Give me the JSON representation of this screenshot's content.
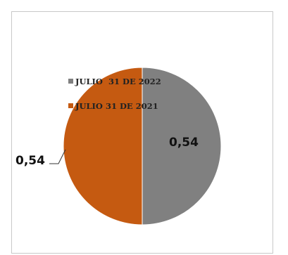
{
  "chart_data": {
    "type": "pie",
    "series": [
      {
        "name": "JULIO  31 DE 2022",
        "value": 0.54,
        "label": "0,54",
        "color": "#808080"
      },
      {
        "name": "JULIO 31 DE 2021",
        "value": 0.54,
        "label": "0,54",
        "color": "#c55a11"
      }
    ],
    "legend_position": "inside-top-left"
  }
}
